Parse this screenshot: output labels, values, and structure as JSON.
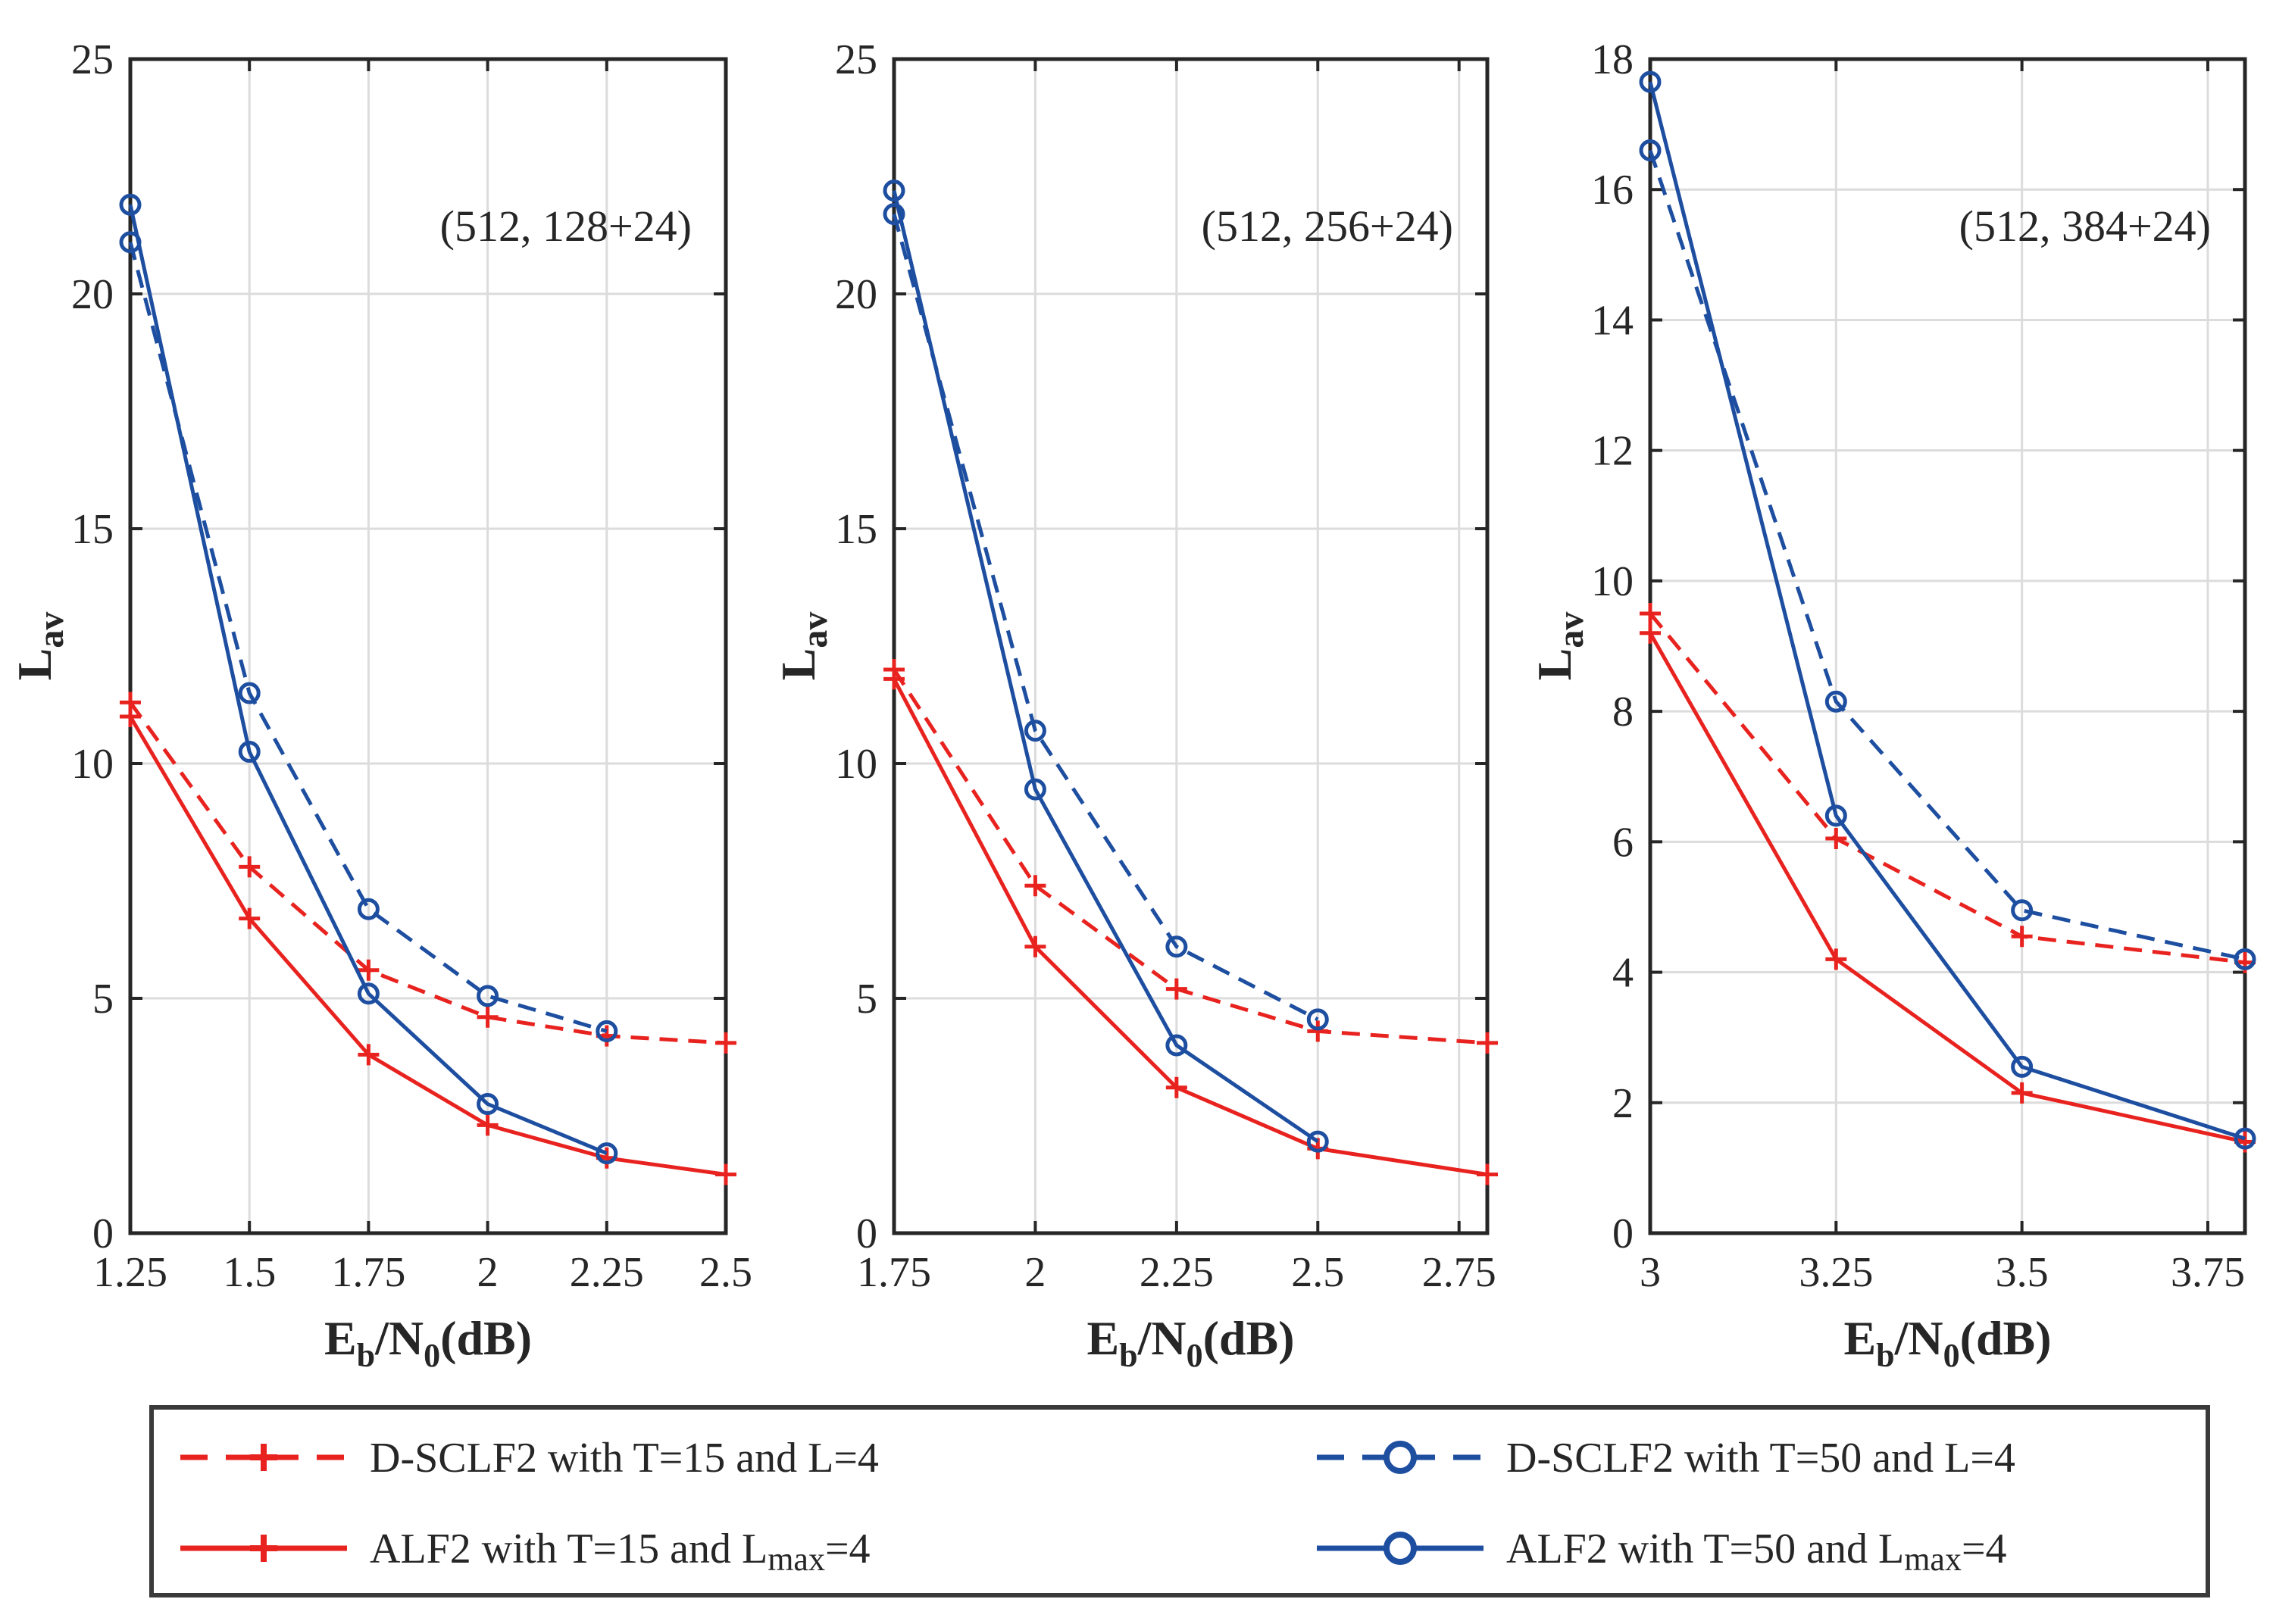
{
  "chart_data": [
    {
      "type": "line",
      "annotation": "(512, 128+24)",
      "xlabel": {
        "base": "E",
        "sub1": "b",
        "mid": "/N",
        "sub2": "0",
        "tail": "(dB)"
      },
      "ylabel": {
        "base": "L",
        "sub": "av"
      },
      "xlim": [
        1.25,
        2.5
      ],
      "ylim": [
        0,
        25
      ],
      "xticks": [
        "1.25",
        "1.5",
        "1.75",
        "2",
        "2.25",
        "2.5"
      ],
      "yticks": [
        "0",
        "5",
        "10",
        "15",
        "20",
        "25"
      ],
      "series": [
        {
          "name": "D-SCLF2 with T=15 and L=4",
          "x": [
            1.25,
            1.5,
            1.75,
            2.0,
            2.25,
            2.5
          ],
          "y": [
            11.3,
            7.8,
            5.6,
            4.6,
            4.2,
            4.05
          ]
        },
        {
          "name": "ALF2 with T=15 and Lmax=4",
          "x": [
            1.25,
            1.5,
            1.75,
            2.0,
            2.25,
            2.5
          ],
          "y": [
            11.0,
            6.7,
            3.8,
            2.3,
            1.6,
            1.25
          ]
        },
        {
          "name": "D-SCLF2 with T=50 and L=4",
          "x": [
            1.25,
            1.5,
            1.75,
            2.0,
            2.25
          ],
          "y": [
            21.1,
            11.5,
            6.9,
            5.05,
            4.3
          ]
        },
        {
          "name": "ALF2 with T=50 and Lmax=4",
          "x": [
            1.25,
            1.5,
            1.75,
            2.0,
            2.25
          ],
          "y": [
            21.9,
            10.25,
            5.1,
            2.75,
            1.7
          ]
        }
      ]
    },
    {
      "type": "line",
      "annotation": "(512, 256+24)",
      "xlabel": {
        "base": "E",
        "sub1": "b",
        "mid": "/N",
        "sub2": "0",
        "tail": "(dB)"
      },
      "ylabel": {
        "base": "L",
        "sub": "av"
      },
      "xlim": [
        1.75,
        2.8
      ],
      "ylim": [
        0,
        25
      ],
      "xticks": [
        "1.75",
        "2",
        "2.25",
        "2.5",
        "2.75"
      ],
      "yticks": [
        "0",
        "5",
        "10",
        "15",
        "20",
        "25"
      ],
      "series": [
        {
          "name": "D-SCLF2 with T=15 and L=4",
          "x": [
            1.75,
            2.0,
            2.25,
            2.5,
            2.8
          ],
          "y": [
            12.0,
            7.4,
            5.2,
            4.3,
            4.05
          ]
        },
        {
          "name": "ALF2 with T=15 and Lmax=4",
          "x": [
            1.75,
            2.0,
            2.25,
            2.5,
            2.8
          ],
          "y": [
            11.8,
            6.1,
            3.1,
            1.8,
            1.25
          ]
        },
        {
          "name": "D-SCLF2 with T=50 and L=4",
          "x": [
            1.75,
            2.0,
            2.25,
            2.5
          ],
          "y": [
            21.7,
            10.7,
            6.1,
            4.55
          ]
        },
        {
          "name": "ALF2 with T=50 and Lmax=4",
          "x": [
            1.75,
            2.0,
            2.25,
            2.5
          ],
          "y": [
            22.2,
            9.45,
            4.0,
            1.95
          ]
        }
      ]
    },
    {
      "type": "line",
      "annotation": "(512, 384+24)",
      "xlabel": {
        "base": "E",
        "sub1": "b",
        "mid": "/N",
        "sub2": "0",
        "tail": "(dB)"
      },
      "ylabel": {
        "base": "L",
        "sub": "av"
      },
      "xlim": [
        3.0,
        3.8
      ],
      "ylim": [
        0,
        18
      ],
      "xticks": [
        "3",
        "3.25",
        "3.5",
        "3.75"
      ],
      "yticks": [
        "0",
        "2",
        "4",
        "6",
        "8",
        "10",
        "12",
        "14",
        "16",
        "18"
      ],
      "series": [
        {
          "name": "D-SCLF2 with T=15 and L=4",
          "x": [
            3.0,
            3.25,
            3.5,
            3.8
          ],
          "y": [
            9.5,
            6.05,
            4.55,
            4.15
          ]
        },
        {
          "name": "ALF2 with T=15 and Lmax=4",
          "x": [
            3.0,
            3.25,
            3.5,
            3.8
          ],
          "y": [
            9.2,
            4.2,
            2.15,
            1.4
          ]
        },
        {
          "name": "D-SCLF2 with T=50 and L=4",
          "x": [
            3.0,
            3.25,
            3.5,
            3.8
          ],
          "y": [
            16.6,
            8.15,
            4.95,
            4.2
          ]
        },
        {
          "name": "ALF2 with T=50 and Lmax=4",
          "x": [
            3.0,
            3.25,
            3.5,
            3.8
          ],
          "y": [
            17.65,
            6.4,
            2.55,
            1.45
          ]
        }
      ]
    }
  ],
  "series_styles": [
    {
      "color": "#e8231f",
      "dash": "dashed",
      "marker": "plus"
    },
    {
      "color": "#e8231f",
      "dash": "solid",
      "marker": "plus"
    },
    {
      "color": "#1d4ea0",
      "dash": "dashed",
      "marker": "circle"
    },
    {
      "color": "#1d4ea0",
      "dash": "solid",
      "marker": "circle"
    }
  ],
  "legend": {
    "placement": "bottom",
    "items": [
      {
        "text": "D-SCLF2 with T=15 and L=4",
        "series": 0
      },
      {
        "text": "D-SCLF2 with T=50 and L=4",
        "series": 2
      },
      {
        "text": "ALF2 with T=15 and L",
        "sub": "max",
        "tail": "=4",
        "series": 1
      },
      {
        "text": "ALF2 with T=50 and L",
        "sub": "max",
        "tail": "=4",
        "series": 3
      }
    ]
  }
}
